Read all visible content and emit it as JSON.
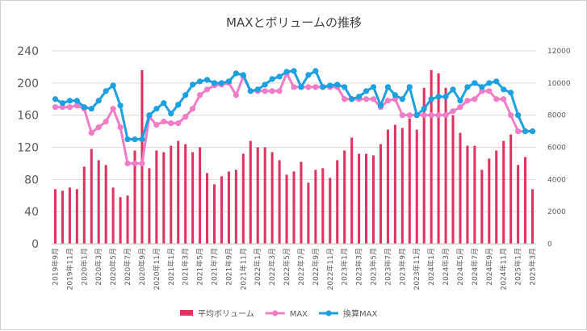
{
  "chart_data": {
    "type": "bar",
    "title": "MAXとボリュームの推移",
    "categories": [
      "2019年9月",
      "2019年10月",
      "2019年11月",
      "2019年12月",
      "2020年1月",
      "2020年2月",
      "2020年3月",
      "2020年4月",
      "2020年5月",
      "2020年6月",
      "2020年7月",
      "2020年8月",
      "2020年9月",
      "2020年10月",
      "2020年11月",
      "2020年12月",
      "2021年1月",
      "2021年2月",
      "2021年3月",
      "2021年4月",
      "2021年5月",
      "2021年6月",
      "2021年7月",
      "2021年8月",
      "2021年9月",
      "2021年10月",
      "2021年11月",
      "2021年12月",
      "2022年1月",
      "2022年2月",
      "2022年3月",
      "2022年4月",
      "2022年5月",
      "2022年6月",
      "2022年7月",
      "2022年8月",
      "2022年9月",
      "2022年10月",
      "2022年11月",
      "2022年12月",
      "2023年1月",
      "2023年2月",
      "2023年3月",
      "2023年4月",
      "2023年5月",
      "2023年6月",
      "2023年7月",
      "2023年8月",
      "2023年9月",
      "2023年10月",
      "2023年11月",
      "2023年12月",
      "2024年1月",
      "2024年2月",
      "2024年3月",
      "2024年4月",
      "2024年5月",
      "2024年6月",
      "2024年7月",
      "2024年8月",
      "2024年9月",
      "2024年10月",
      "2024年11月",
      "2024年12月",
      "2025年1月",
      "2025年2月",
      "2025年3月"
    ],
    "xticks": [
      "2019年9月",
      "2019年11月",
      "2020年1月",
      "2020年3月",
      "2020年5月",
      "2020年7月",
      "2020年9月",
      "2020年11月",
      "2021年1月",
      "2021年3月",
      "2021年5月",
      "2021年7月",
      "2021年9月",
      "2021年11月",
      "2022年1月",
      "2022年3月",
      "2022年5月",
      "2022年7月",
      "2022年9月",
      "2022年11月",
      "2023年1月",
      "2023年3月",
      "2023年5月",
      "2023年7月",
      "2023年9月",
      "2023年11月",
      "2024年1月",
      "2024年3月",
      "2024年5月",
      "2024年7月",
      "2024年9月",
      "2024年11月",
      "2025年1月",
      "2025年3月"
    ],
    "y_left": {
      "ylim": [
        0,
        240
      ],
      "ticks": [
        0,
        40,
        80,
        120,
        160,
        200,
        240
      ]
    },
    "y_right": {
      "ylim": [
        0,
        12000
      ],
      "ticks": [
        0,
        2000,
        4000,
        6000,
        8000,
        10000,
        12000
      ]
    },
    "grid": true,
    "legend_position": "bottom",
    "series": [
      {
        "name": "平均ボリューム",
        "type": "bar",
        "axis": "right",
        "color": "#E0325F",
        "values": [
          3400,
          3300,
          3500,
          3400,
          4800,
          5900,
          5200,
          4900,
          3500,
          2900,
          3000,
          5800,
          10800,
          4700,
          5800,
          5700,
          6100,
          6400,
          6200,
          5700,
          6000,
          4400,
          3700,
          4200,
          4500,
          4600,
          5600,
          6400,
          6000,
          6000,
          5700,
          5200,
          4300,
          4500,
          5100,
          3800,
          4600,
          4700,
          4100,
          5200,
          5800,
          6600,
          5600,
          5600,
          5500,
          6200,
          7100,
          7400,
          7200,
          7800,
          7100,
          9700,
          10800,
          10600,
          9700,
          8000,
          6900,
          6100,
          6100,
          4600,
          5300,
          5800,
          6400,
          6800,
          4900,
          5400,
          3400
        ]
      },
      {
        "name": "MAX",
        "type": "line",
        "axis": "left",
        "color": "#F07CC8",
        "values": [
          170,
          170,
          170,
          172,
          168,
          138,
          145,
          152,
          168,
          145,
          100,
          100,
          100,
          158,
          148,
          152,
          150,
          150,
          158,
          168,
          185,
          192,
          197,
          198,
          200,
          185,
          208,
          190,
          190,
          190,
          190,
          190,
          212,
          195,
          195,
          195,
          195,
          195,
          195,
          195,
          180,
          180,
          180,
          180,
          180,
          170,
          178,
          180,
          160,
          160,
          160,
          160,
          160,
          160,
          160,
          165,
          170,
          178,
          180,
          190,
          190,
          180,
          180,
          160,
          140,
          140,
          140
        ]
      },
      {
        "name": "換算MAX",
        "type": "line",
        "axis": "left",
        "color": "#1BA1E2",
        "values": [
          180,
          175,
          178,
          178,
          170,
          168,
          178,
          190,
          197,
          172,
          130,
          130,
          130,
          160,
          168,
          175,
          162,
          173,
          185,
          198,
          202,
          204,
          200,
          200,
          202,
          212,
          210,
          190,
          192,
          198,
          205,
          208,
          214,
          215,
          195,
          210,
          215,
          195,
          197,
          198,
          195,
          180,
          183,
          190,
          195,
          172,
          195,
          185,
          180,
          195,
          160,
          168,
          180,
          183,
          183,
          192,
          178,
          195,
          200,
          195,
          200,
          202,
          192,
          188,
          160,
          140,
          140
        ]
      }
    ]
  }
}
